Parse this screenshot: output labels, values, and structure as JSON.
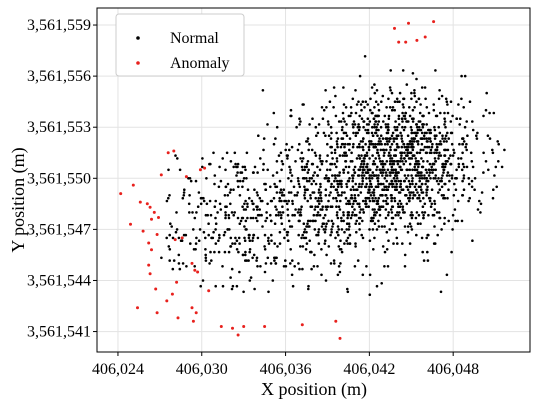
{
  "chart_data": {
    "type": "scatter",
    "xlabel": "X position (m)",
    "ylabel": "Y position (m)",
    "xlim": [
      406022.5,
      406053.5
    ],
    "ylim": [
      3561539.8,
      3561560.0
    ],
    "x_ticks": [
      406024,
      406030,
      406036,
      406042,
      406048
    ],
    "x_tick_labels": [
      "406,024",
      "406,030",
      "406,036",
      "406,042",
      "406,048"
    ],
    "y_ticks": [
      3561541,
      3561544,
      3561547,
      3561550,
      3561553,
      3561556,
      3561559
    ],
    "y_tick_labels": [
      "3,561,541",
      "3,561,544",
      "3,561,547",
      "3,561,550",
      "3,561,553",
      "3,561,556",
      "3,561,559"
    ],
    "grid": true,
    "legend_position": "top-left",
    "series": [
      {
        "name": "Normal",
        "color": "#000000",
        "cloud": {
          "count": 1900,
          "clusters": [
            {
              "cx": 406044.5,
              "cy": 3561551.0,
              "sx": 2.8,
              "sy": 2.2,
              "weight": 0.55
            },
            {
              "cx": 406039.0,
              "cy": 3561549.0,
              "sx": 3.5,
              "sy": 2.5,
              "weight": 0.3
            },
            {
              "cx": 406032.0,
              "cy": 3561547.5,
              "sx": 3.0,
              "sy": 2.0,
              "weight": 0.15
            }
          ],
          "bounds": {
            "xmin": 406027.0,
            "xmax": 406052.0,
            "ymin": 3561543.0,
            "ymax": 3561557.5
          }
        }
      },
      {
        "name": "Anomaly",
        "color": "#e8211d",
        "points": [
          [
            406024.2,
            3561549.1
          ],
          [
            406025.1,
            3561549.6
          ],
          [
            406024.9,
            3561547.3
          ],
          [
            406025.6,
            3561548.6
          ],
          [
            406025.8,
            3561546.9
          ],
          [
            406026.1,
            3561548.5
          ],
          [
            406026.3,
            3561548.3
          ],
          [
            406026.6,
            3561548.0
          ],
          [
            406026.4,
            3561547.6
          ],
          [
            406026.9,
            3561547.7
          ],
          [
            406026.2,
            3561546.2
          ],
          [
            406026.4,
            3561545.8
          ],
          [
            406026.8,
            3561546.7
          ],
          [
            406027.1,
            3561550.2
          ],
          [
            406026.2,
            3561544.9
          ],
          [
            406026.3,
            3561544.4
          ],
          [
            406026.7,
            3561543.5
          ],
          [
            406027.5,
            3561542.8
          ],
          [
            406027.9,
            3561543.2
          ],
          [
            406028.2,
            3561543.9
          ],
          [
            406028.1,
            3561546.4
          ],
          [
            406028.6,
            3561546.5
          ],
          [
            406027.6,
            3561551.5
          ],
          [
            406028.0,
            3561551.6
          ],
          [
            406028.9,
            3561550.1
          ],
          [
            406029.3,
            3561545.0
          ],
          [
            406029.5,
            3561544.6
          ],
          [
            406029.7,
            3561544.5
          ],
          [
            406029.3,
            3561542.4
          ],
          [
            406029.6,
            3561542.1
          ],
          [
            406029.4,
            3561541.6
          ],
          [
            406028.3,
            3561541.8
          ],
          [
            406029.9,
            3561550.5
          ],
          [
            406030.2,
            3561550.6
          ],
          [
            406030.5,
            3561543.4
          ],
          [
            406031.4,
            3561541.3
          ],
          [
            406032.2,
            3561541.2
          ],
          [
            406032.6,
            3561540.8
          ],
          [
            406033.0,
            3561541.3
          ],
          [
            406025.4,
            3561542.4
          ],
          [
            406026.8,
            3561542.1
          ],
          [
            406034.5,
            3561541.3
          ],
          [
            406037.2,
            3561541.4
          ],
          [
            406039.6,
            3561541.6
          ],
          [
            406039.9,
            3561540.6
          ],
          [
            406043.8,
            3561558.8
          ],
          [
            406044.1,
            3561558.0
          ],
          [
            406044.6,
            3561558.0
          ],
          [
            406044.8,
            3561559.1
          ],
          [
            406045.4,
            3561558.1
          ],
          [
            406046.0,
            3561558.3
          ],
          [
            406046.6,
            3561559.2
          ]
        ]
      }
    ]
  }
}
